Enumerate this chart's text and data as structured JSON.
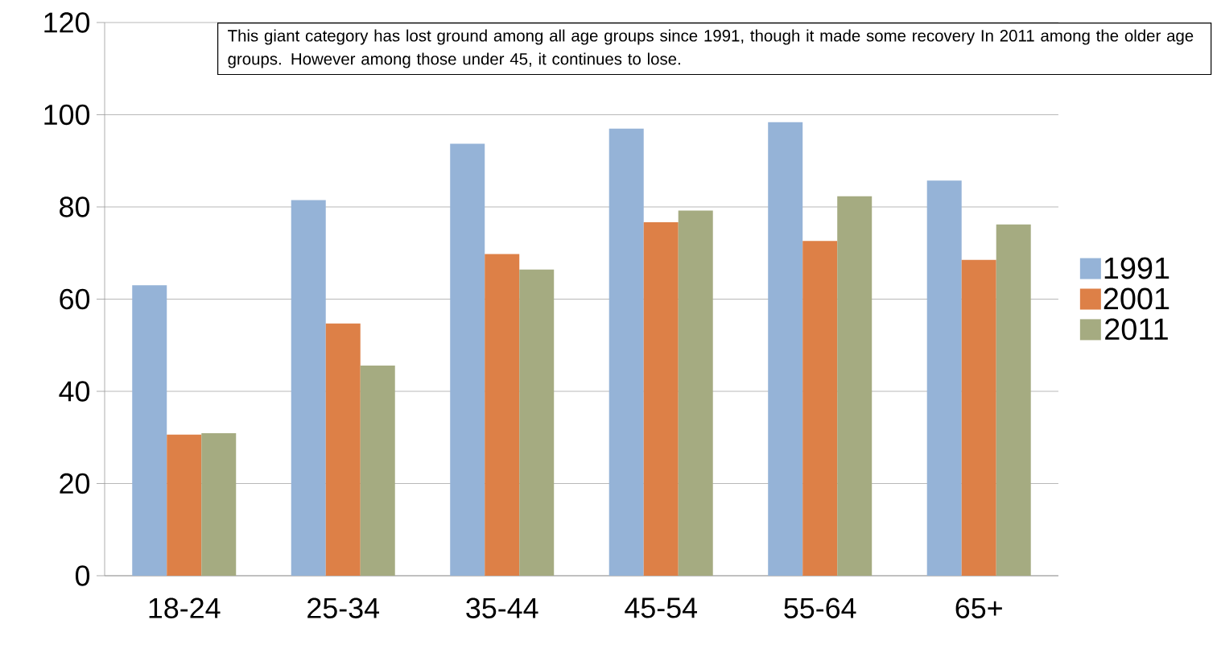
{
  "chart_data": {
    "type": "bar",
    "categories": [
      "18-24",
      "25-34",
      "35-44",
      "45-54",
      "55-64",
      "65+"
    ],
    "series": [
      {
        "name": "1991",
        "color": "#95b3d7",
        "values": [
          63,
          81.5,
          93.7,
          97,
          98.4,
          85.7
        ]
      },
      {
        "name": "2001",
        "color": "#dd8047",
        "values": [
          30.6,
          54.7,
          69.8,
          76.7,
          72.6,
          68.5
        ]
      },
      {
        "name": "2011",
        "color": "#a5ab81",
        "values": [
          30.9,
          45.6,
          66.4,
          79.2,
          82.3,
          76.2
        ]
      }
    ],
    "ylim": [
      0,
      120
    ],
    "yticks": [
      0,
      20,
      40,
      60,
      80,
      100,
      120
    ],
    "grid": "y",
    "legend": "right",
    "annotations": [
      "This giant category has lost ground among all age groups since 1991, though it made some recovery In 2011 among the older age groups.  However among those under 45, it continues to lose."
    ]
  }
}
